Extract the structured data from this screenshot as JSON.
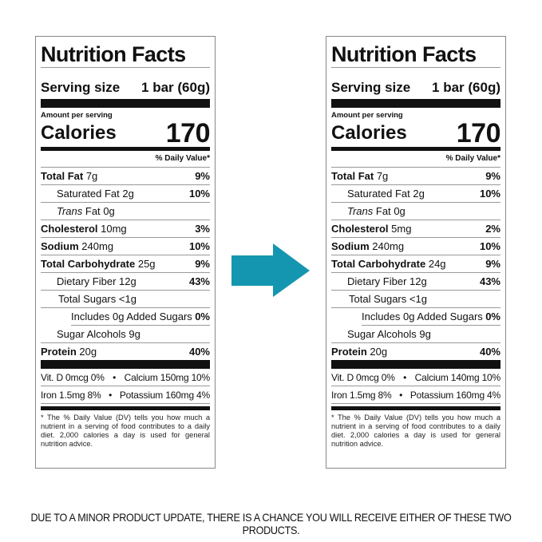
{
  "caption": "DUE TO A MINOR PRODUCT UPDATE, THERE IS A CHANCE YOU WILL RECEIVE EITHER OF THESE TWO PRODUCTS.",
  "arrow_color": "#1596b0",
  "labels": [
    {
      "title": "Nutrition Facts",
      "serving_label": "Serving size",
      "serving_value": "1 bar (60g)",
      "amount_per_serving": "Amount per serving",
      "calories_label": "Calories",
      "calories_value": "170",
      "daily_value_header": "% Daily Value*",
      "rows": [
        {
          "bold": "Total Fat",
          "amount": "7g",
          "pct": "9%",
          "indent": 0
        },
        {
          "name": "Saturated Fat",
          "amount": "2g",
          "pct": "10%",
          "indent": 1
        },
        {
          "italic": "Trans",
          "name": "Fat",
          "amount": "0g",
          "pct": "",
          "indent": 1
        },
        {
          "bold": "Cholesterol",
          "amount": "10mg",
          "pct": "3%",
          "indent": 0
        },
        {
          "bold": "Sodium",
          "amount": "240mg",
          "pct": "10%",
          "indent": 0
        },
        {
          "bold": "Total Carbohydrate",
          "amount": "25g",
          "pct": "9%",
          "indent": 0
        },
        {
          "name": "Dietary Fiber",
          "amount": "12g",
          "pct": "43%",
          "indent": 1
        },
        {
          "name": "Total Sugars",
          "amount": "<1g",
          "pct": "",
          "indent": 2
        },
        {
          "name": "Includes 0g Added Sugars",
          "amount": "",
          "pct": "0%",
          "indent": 3
        },
        {
          "name": "Sugar Alcohols",
          "amount": "9g",
          "pct": "",
          "indent": 1
        },
        {
          "bold": "Protein",
          "amount": "20g",
          "pct": "40%",
          "indent": 0
        }
      ],
      "vitamins": [
        [
          "Vit. D 0mcg 0%",
          "Calcium 150mg 10%"
        ],
        [
          "Iron 1.5mg 8%",
          "Potassium 160mg 4%"
        ]
      ],
      "footnote": "* The % Daily Value (DV) tells you how much a nutrient in a serving of food contributes to a daily diet. 2,000 calories a day is used for general nutrition advice."
    },
    {
      "title": "Nutrition Facts",
      "serving_label": "Serving size",
      "serving_value": "1 bar (60g)",
      "amount_per_serving": "Amount per serving",
      "calories_label": "Calories",
      "calories_value": "170",
      "daily_value_header": "% Daily Value*",
      "rows": [
        {
          "bold": "Total Fat",
          "amount": "7g",
          "pct": "9%",
          "indent": 0
        },
        {
          "name": "Saturated Fat",
          "amount": "2g",
          "pct": "10%",
          "indent": 1
        },
        {
          "italic": "Trans",
          "name": "Fat",
          "amount": "0g",
          "pct": "",
          "indent": 1
        },
        {
          "bold": "Cholesterol",
          "amount": "5mg",
          "pct": "2%",
          "indent": 0
        },
        {
          "bold": "Sodium",
          "amount": "240mg",
          "pct": "10%",
          "indent": 0
        },
        {
          "bold": "Total Carbohydrate",
          "amount": "24g",
          "pct": "9%",
          "indent": 0
        },
        {
          "name": "Dietary Fiber",
          "amount": "12g",
          "pct": "43%",
          "indent": 1
        },
        {
          "name": "Total Sugars",
          "amount": "<1g",
          "pct": "",
          "indent": 2
        },
        {
          "name": "Includes 0g Added Sugars",
          "amount": "",
          "pct": "0%",
          "indent": 3
        },
        {
          "name": "Sugar Alcohols",
          "amount": "9g",
          "pct": "",
          "indent": 1
        },
        {
          "bold": "Protein",
          "amount": "20g",
          "pct": "40%",
          "indent": 0
        }
      ],
      "vitamins": [
        [
          "Vit. D 0mcg 0%",
          "Calcium 140mg 10%"
        ],
        [
          "Iron 1.5mg 8%",
          "Potassium 160mg 4%"
        ]
      ],
      "footnote": "* The % Daily Value (DV) tells you how much a nutrient in a serving of food contributes to a daily diet. 2,000 calories a day is used for general nutrition advice."
    }
  ]
}
